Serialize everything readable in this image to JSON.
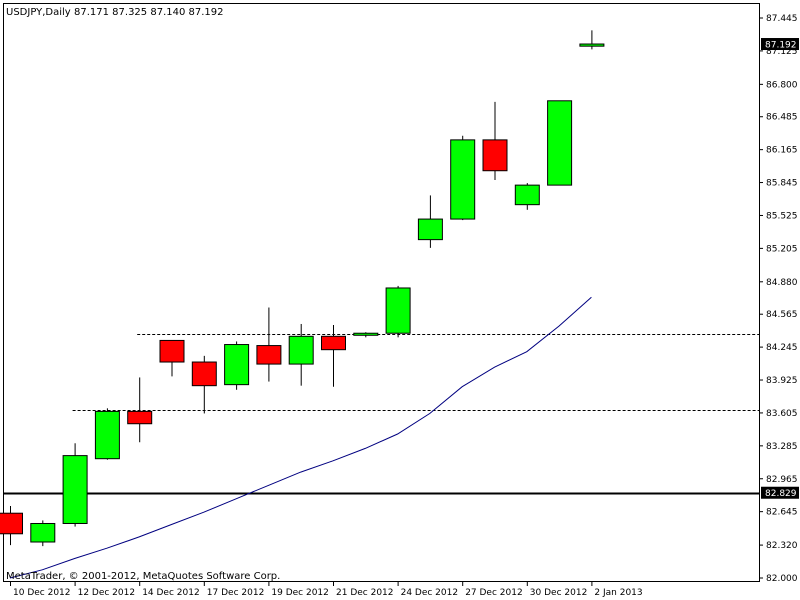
{
  "header": {
    "symbol": "USDJPY,Daily",
    "ohlc": "87.171 87.325 87.140 87.192"
  },
  "copyright": "MetaTrader, © 2001-2012, MetaQuotes Software Corp.",
  "colors": {
    "bull": "#00ff00",
    "bear": "#ff0000",
    "ma": "#000080",
    "outline": "#000000"
  },
  "chart_data": {
    "type": "candlestick",
    "ylim": [
      82.0,
      87.445
    ],
    "y_ticks": [
      "87.445",
      "87.125",
      "86.800",
      "86.485",
      "86.165",
      "85.845",
      "85.525",
      "85.205",
      "84.880",
      "84.565",
      "84.245",
      "83.925",
      "83.605",
      "83.285",
      "82.965",
      "82.645",
      "82.320",
      "82.000"
    ],
    "x_ticks": [
      {
        "index": 0,
        "label": "10 Dec 2012"
      },
      {
        "index": 2,
        "label": "12 Dec 2012"
      },
      {
        "index": 4,
        "label": "14 Dec 2012"
      },
      {
        "index": 6,
        "label": "17 Dec 2012"
      },
      {
        "index": 8,
        "label": "19 Dec 2012"
      },
      {
        "index": 10,
        "label": "21 Dec 2012"
      },
      {
        "index": 12,
        "label": "24 Dec 2012"
      },
      {
        "index": 14,
        "label": "27 Dec 2012"
      },
      {
        "index": 16,
        "label": "30 Dec 2012"
      },
      {
        "index": 18,
        "label": "2 Jan 2013"
      }
    ],
    "candles": [
      {
        "o": 82.63,
        "h": 82.7,
        "l": 82.32,
        "c": 82.43
      },
      {
        "o": 82.35,
        "h": 82.56,
        "l": 82.31,
        "c": 82.53
      },
      {
        "o": 82.53,
        "h": 83.31,
        "l": 82.5,
        "c": 83.19
      },
      {
        "o": 83.16,
        "h": 83.65,
        "l": 83.15,
        "c": 83.62
      },
      {
        "o": 83.62,
        "h": 83.95,
        "l": 83.32,
        "c": 83.5
      },
      {
        "o": 84.31,
        "h": 84.31,
        "l": 83.96,
        "c": 84.1
      },
      {
        "o": 84.1,
        "h": 84.16,
        "l": 83.6,
        "c": 83.87
      },
      {
        "o": 83.88,
        "h": 84.3,
        "l": 83.83,
        "c": 84.27
      },
      {
        "o": 84.26,
        "h": 84.63,
        "l": 83.91,
        "c": 84.08
      },
      {
        "o": 84.08,
        "h": 84.47,
        "l": 83.87,
        "c": 84.35
      },
      {
        "o": 84.35,
        "h": 84.46,
        "l": 83.86,
        "c": 84.22
      },
      {
        "o": 84.36,
        "h": 84.39,
        "l": 84.34,
        "c": 84.38
      },
      {
        "o": 84.38,
        "h": 84.84,
        "l": 84.34,
        "c": 84.82
      },
      {
        "o": 85.29,
        "h": 85.72,
        "l": 85.21,
        "c": 85.49
      },
      {
        "o": 85.49,
        "h": 86.3,
        "l": 85.48,
        "c": 86.26
      },
      {
        "o": 86.26,
        "h": 86.63,
        "l": 85.87,
        "c": 85.96
      },
      {
        "o": 85.63,
        "h": 85.84,
        "l": 85.58,
        "c": 85.82
      },
      {
        "o": 85.82,
        "h": 86.64,
        "l": 85.82,
        "c": 86.64
      },
      {
        "o": 87.171,
        "h": 87.325,
        "l": 87.14,
        "c": 87.192
      }
    ],
    "moving_average": [
      82.0,
      82.08,
      82.19,
      82.29,
      82.4,
      82.52,
      82.64,
      82.77,
      82.9,
      83.03,
      83.14,
      83.26,
      83.4,
      83.6,
      83.86,
      84.05,
      84.2,
      84.45,
      84.73
    ],
    "horizontal_lines": [
      {
        "value": 84.37,
        "style": "dashed",
        "from_index": 4
      },
      {
        "value": 83.63,
        "style": "dashed",
        "from_index": 2
      },
      {
        "value": 82.829,
        "style": "solid",
        "from_index": 0
      }
    ],
    "price_labels": [
      {
        "value": 87.192,
        "text": "87.192"
      },
      {
        "value": 82.829,
        "text": "82.829"
      }
    ]
  }
}
